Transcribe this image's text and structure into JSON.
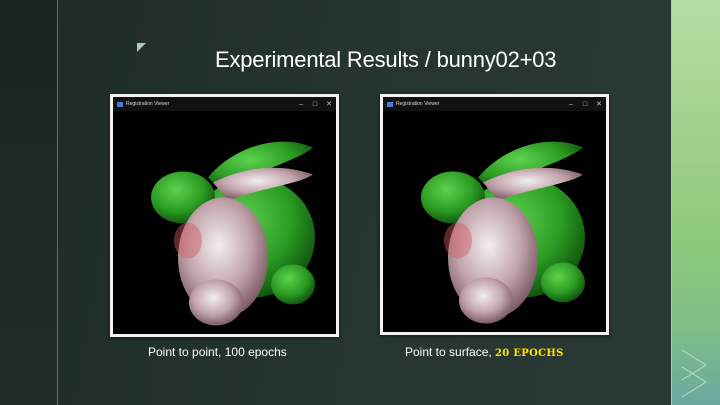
{
  "slide": {
    "title": "Experimental Results / bunny02+03",
    "colors": {
      "accent_green": "#8cc97b",
      "highlight_yellow": "#ffe600",
      "mesh_green": "#2fa82a",
      "mesh_pink": "#c9a9b0"
    }
  },
  "panels": [
    {
      "window_title": "Registration Viewer",
      "controls": {
        "minimize": "–",
        "maximize": "□",
        "close": "✕"
      },
      "caption": "Point to point, 100 epochs"
    },
    {
      "window_title": "Registration Viewer",
      "controls": {
        "minimize": "–",
        "maximize": "□",
        "close": "✕"
      },
      "caption_prefix": "Point to surface, ",
      "caption_highlight": "20 epochs"
    }
  ]
}
